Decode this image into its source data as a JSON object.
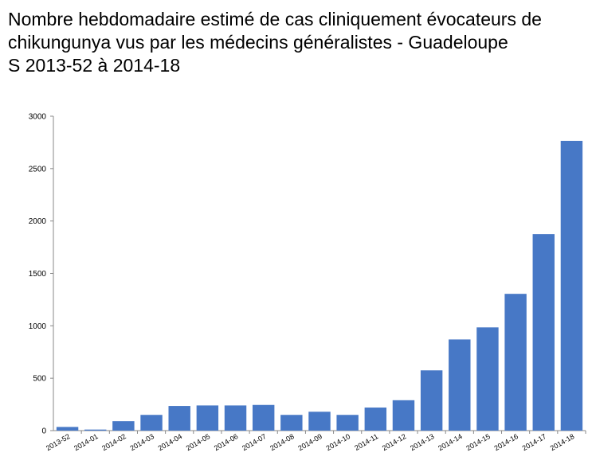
{
  "title": {
    "line1": "Nombre hebdomadaire estimé de cas cliniquement évocateurs de",
    "line2": "chikungunya vus par les médecins généralistes - Guadeloupe",
    "line3": "S 2013-52 à 2014-18"
  },
  "chart_data": {
    "type": "bar",
    "title": "Nombre hebdomadaire estimé de cas cliniquement évocateurs de chikungunya vus par les médecins généralistes - Guadeloupe S 2013-52 à 2014-18",
    "xlabel": "",
    "ylabel": "",
    "categories": [
      "2013-52",
      "2014-01",
      "2014-02",
      "2014-03",
      "2014-04",
      "2014-05",
      "2014-06",
      "2014-07",
      "2014-08",
      "2014-09",
      "2014-10",
      "2014-11",
      "2014-12",
      "2014-13",
      "2014-14",
      "2014-15",
      "2014-16",
      "2014-17",
      "2014-18"
    ],
    "values": [
      35,
      10,
      90,
      150,
      235,
      240,
      240,
      245,
      150,
      180,
      150,
      220,
      290,
      575,
      870,
      985,
      1305,
      1875,
      2765
    ],
    "ylim": [
      0,
      3000
    ],
    "yticks": [
      0,
      500,
      1000,
      1500,
      2000,
      2500,
      3000
    ],
    "grid": false,
    "legend": "none",
    "bar_color": "#4778c6",
    "axis_color": "#888888"
  }
}
